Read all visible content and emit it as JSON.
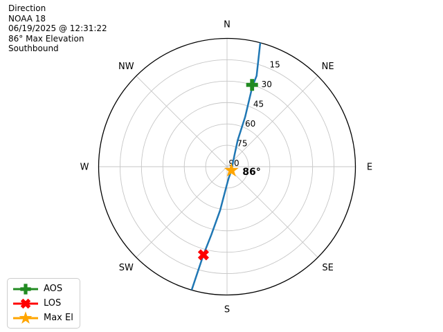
{
  "header": {
    "lines": [
      "Direction",
      "NOAA 18",
      "06/19/2025 @ 12:31:22",
      "86° Max Elevation",
      "Southbound"
    ]
  },
  "chart_data": {
    "type": "polar-pass",
    "title": "Direction",
    "satellite": "NOAA 18",
    "timestamp": "06/19/2025 @ 12:31:22",
    "max_elevation_deg": 86,
    "direction": "Southbound",
    "compass_labels": [
      "N",
      "NE",
      "E",
      "SE",
      "S",
      "SW",
      "W",
      "NW"
    ],
    "elevation_ring_labels": [
      15,
      30,
      45,
      60,
      75,
      90
    ],
    "rlabel_azimuth_deg": 22.5,
    "colors": {
      "track": "#1f77b4",
      "grid": "#c6c6c6",
      "outline": "#000000",
      "aos": "#228B22",
      "los": "#ff0000",
      "max_el": "#FFA500"
    },
    "track_points_az_el": [
      [
        15,
        0
      ],
      [
        18,
        23
      ],
      [
        17.5,
        31
      ],
      [
        20,
        53
      ],
      [
        22,
        70
      ],
      [
        32,
        80
      ],
      [
        130,
        86
      ],
      [
        173,
        81.5
      ],
      [
        182,
        76
      ],
      [
        189,
        59
      ],
      [
        193,
        41
      ],
      [
        195,
        26
      ],
      [
        196,
        0
      ]
    ],
    "markers": [
      {
        "id": "aos",
        "label": "AOS",
        "shape": "plus",
        "color": "#228B22",
        "az": 17,
        "el": 30
      },
      {
        "id": "los",
        "label": "LOS",
        "shape": "x",
        "color": "#ff0000",
        "az": 195,
        "el": 26
      },
      {
        "id": "max-el",
        "label": "Max El",
        "shape": "star",
        "color": "#FFA500",
        "az": 130,
        "el": 86
      }
    ],
    "max_el_annotation": "86°"
  },
  "legend": {
    "items": [
      "AOS",
      "LOS",
      "Max El"
    ]
  }
}
